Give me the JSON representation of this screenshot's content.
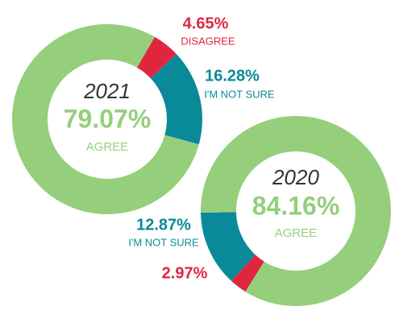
{
  "chart_data": [
    {
      "type": "donut",
      "title": "2021",
      "categories": [
        "DISAGREE",
        "I'M NOT SURE",
        "AGREE"
      ],
      "values": [
        4.65,
        16.28,
        79.07
      ],
      "value_labels": [
        "4.65%",
        "16.28%",
        "79.07%"
      ],
      "colors": [
        "#e0263f",
        "#0a8a99",
        "#95cf7c"
      ]
    },
    {
      "type": "donut",
      "title": "2020",
      "categories": [
        null,
        "I'M NOT SURE",
        "AGREE"
      ],
      "values": [
        2.97,
        12.87,
        84.16
      ],
      "value_labels": [
        "2.97%",
        "12.87%",
        "84.16%"
      ],
      "colors": [
        "#e0263f",
        "#0a8a99",
        "#95cf7c"
      ]
    }
  ]
}
